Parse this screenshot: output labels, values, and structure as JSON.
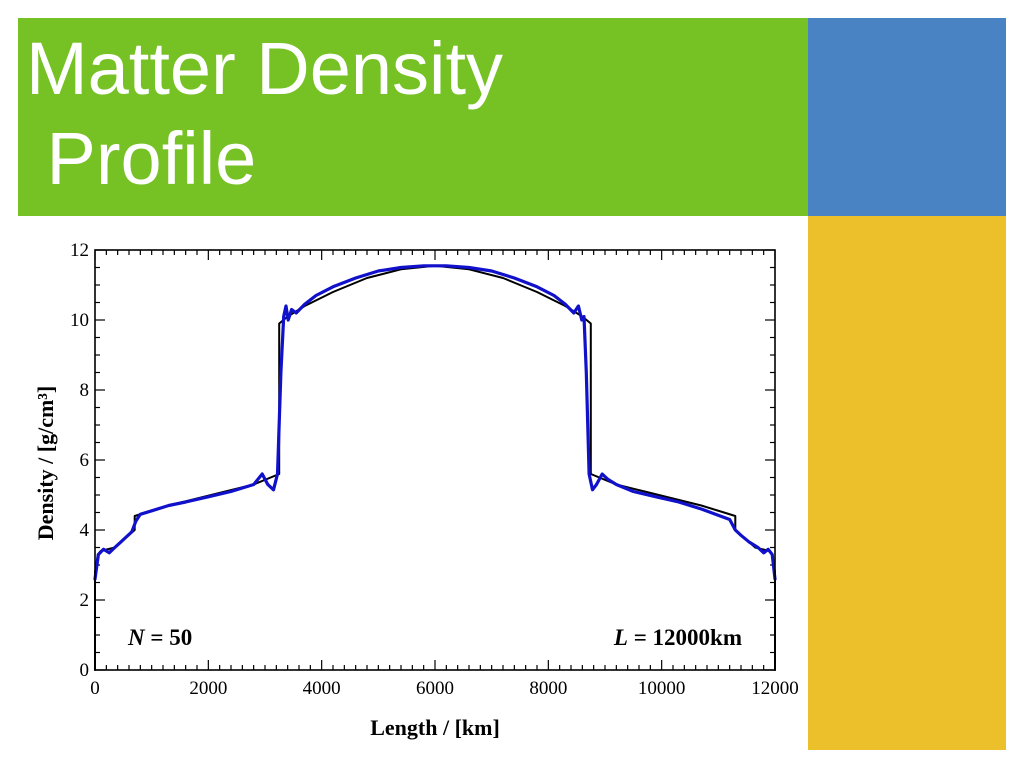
{
  "slide": {
    "title": "Matter Density\n Profile",
    "colors": {
      "green": "#76c124",
      "blue": "#4a83c4",
      "yellow": "#ecc02a",
      "curve_blue": "#1111cc",
      "curve_black": "#000000"
    }
  },
  "chart_data": {
    "type": "line",
    "xlabel": "Length / [km]",
    "ylabel": "Density / [g/cm³]",
    "xlim": [
      0,
      12000
    ],
    "ylim": [
      0,
      12
    ],
    "x_ticks": [
      "0",
      "2000",
      "4000",
      "6000",
      "8000",
      "10000",
      "12000"
    ],
    "y_ticks": [
      "0",
      "2",
      "4",
      "6",
      "8",
      "10",
      "12"
    ],
    "grid": false,
    "annotations": {
      "left": {
        "var": "N",
        "text": " = 50"
      },
      "right": {
        "var": "L",
        "text": " = 12000km"
      }
    },
    "series": [
      {
        "style": "black-step",
        "x": [
          0,
          0,
          50,
          100,
          350,
          700,
          700,
          900,
          1300,
          1800,
          2300,
          2800,
          3250,
          3250,
          3400,
          3700,
          4200,
          4800,
          5400,
          6000,
          6600,
          7200,
          7800,
          8300,
          8600,
          8750,
          8750,
          9200,
          9700,
          10200,
          10700,
          11100,
          11300,
          11300,
          11650,
          11900,
          11950,
          12000,
          12000
        ],
        "y": [
          0,
          2.8,
          3.3,
          3.4,
          3.5,
          4.0,
          4.4,
          4.5,
          4.7,
          4.9,
          5.1,
          5.3,
          5.6,
          9.9,
          10.1,
          10.4,
          10.8,
          11.2,
          11.45,
          11.55,
          11.45,
          11.2,
          10.8,
          10.4,
          10.1,
          9.9,
          5.6,
          5.3,
          5.1,
          4.9,
          4.7,
          4.5,
          4.4,
          4.0,
          3.5,
          3.4,
          3.3,
          2.8,
          0
        ]
      },
      {
        "style": "blue-fit",
        "x": [
          0,
          60,
          150,
          250,
          350,
          450,
          550,
          650,
          720,
          800,
          1000,
          1300,
          1600,
          2000,
          2400,
          2800,
          2950,
          3050,
          3150,
          3220,
          3280,
          3330,
          3370,
          3410,
          3470,
          3550,
          3700,
          3900,
          4200,
          4600,
          5000,
          5400,
          5800,
          6000,
          6200,
          6600,
          7000,
          7400,
          7800,
          8100,
          8300,
          8450,
          8530,
          8590,
          8630,
          8670,
          8720,
          8780,
          8850,
          8950,
          9050,
          9200,
          9500,
          9900,
          10300,
          10700,
          10950,
          11200,
          11300,
          11400,
          11550,
          11700,
          11800,
          11880,
          11950,
          12000
        ],
        "y": [
          2.6,
          3.3,
          3.45,
          3.35,
          3.5,
          3.65,
          3.8,
          3.95,
          4.25,
          4.45,
          4.55,
          4.7,
          4.8,
          4.95,
          5.1,
          5.3,
          5.6,
          5.3,
          5.15,
          5.6,
          8.5,
          10.1,
          10.4,
          10.0,
          10.3,
          10.2,
          10.45,
          10.7,
          10.95,
          11.2,
          11.4,
          11.5,
          11.55,
          11.55,
          11.55,
          11.5,
          11.4,
          11.2,
          10.95,
          10.7,
          10.45,
          10.2,
          10.4,
          10.0,
          10.1,
          8.5,
          5.6,
          5.15,
          5.3,
          5.6,
          5.45,
          5.3,
          5.1,
          4.95,
          4.8,
          4.6,
          4.45,
          4.3,
          4.0,
          3.85,
          3.65,
          3.5,
          3.35,
          3.45,
          3.3,
          2.6
        ]
      }
    ]
  }
}
